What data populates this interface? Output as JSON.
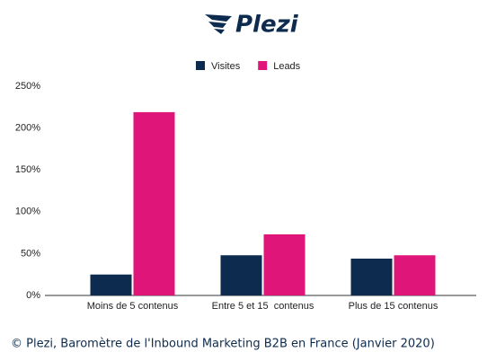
{
  "logo": "Plezi",
  "footer": "© Plezi, Baromètre de l'Inbound Marketing B2B en France (Janvier 2020)",
  "chart_data": {
    "type": "bar",
    "categories": [
      "Moins de 5 contenus",
      "Entre 5 et 15  contenus",
      "Plus de 15 contenus"
    ],
    "series": [
      {
        "name": "Visites",
        "color": "#0d2b4e",
        "values": [
          25,
          48,
          44
        ]
      },
      {
        "name": "Leads",
        "color": "#e0157a",
        "values": [
          219,
          73,
          48
        ]
      }
    ],
    "ylim": [
      0,
      250
    ],
    "yticks": [
      {
        "value": 0,
        "label": "0%"
      },
      {
        "value": 50,
        "label": "50%"
      },
      {
        "value": 100,
        "label": "100%"
      },
      {
        "value": 150,
        "label": "150%"
      },
      {
        "value": 200,
        "label": "200%"
      },
      {
        "value": 250,
        "label": "250%"
      }
    ],
    "grid": false,
    "legend": "top"
  }
}
